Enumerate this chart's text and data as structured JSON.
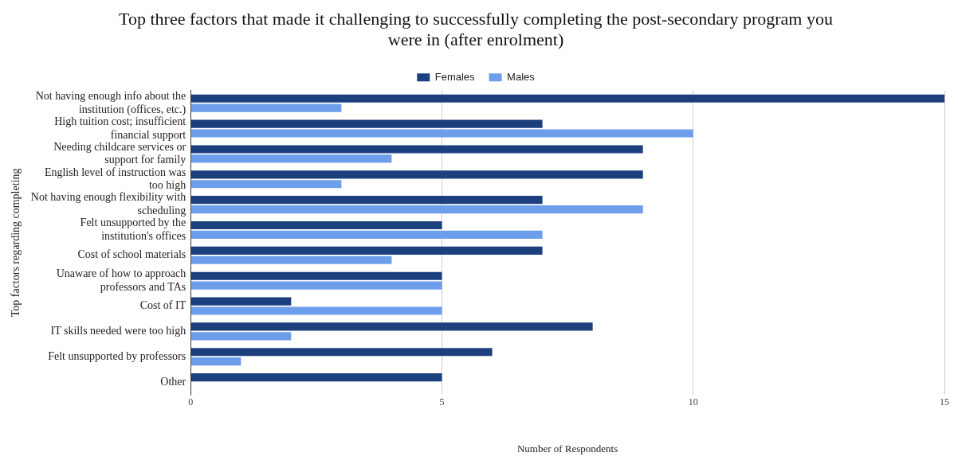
{
  "chart_data": {
    "type": "bar",
    "orientation": "horizontal",
    "title": "Top three factors that made it challenging to successfully completing the post-secondary program you were in (after enrolment)",
    "xlabel": "Number of Respondents",
    "ylabel": "Top factors regarding completing",
    "categories": [
      "Not having enough info about the institution (offices, etc.)",
      "High tuition cost; insufficient financial support",
      "Needing childcare services or support for family",
      "English level of instruction was too high",
      "Not having enough flexibility with scheduling",
      "Felt unsupported by the institution's offices",
      "Cost of school materials",
      "Unaware of how to approach professors and TAs",
      "Cost of IT",
      "IT skills needed were too high",
      "Felt unsupported by professors",
      "Other"
    ],
    "series": [
      {
        "name": "Females",
        "color": "#1c3f7e",
        "values": [
          15,
          7,
          9,
          9,
          7,
          5,
          7,
          5,
          2,
          8,
          6,
          5
        ]
      },
      {
        "name": "Males",
        "color": "#6d9eeb",
        "values": [
          3,
          10,
          4,
          3,
          9,
          7,
          4,
          5,
          5,
          2,
          1,
          0
        ]
      }
    ],
    "xlim": [
      0,
      15
    ],
    "xticks": [
      0,
      5,
      10,
      15
    ],
    "grid": "x",
    "legend": "top"
  }
}
